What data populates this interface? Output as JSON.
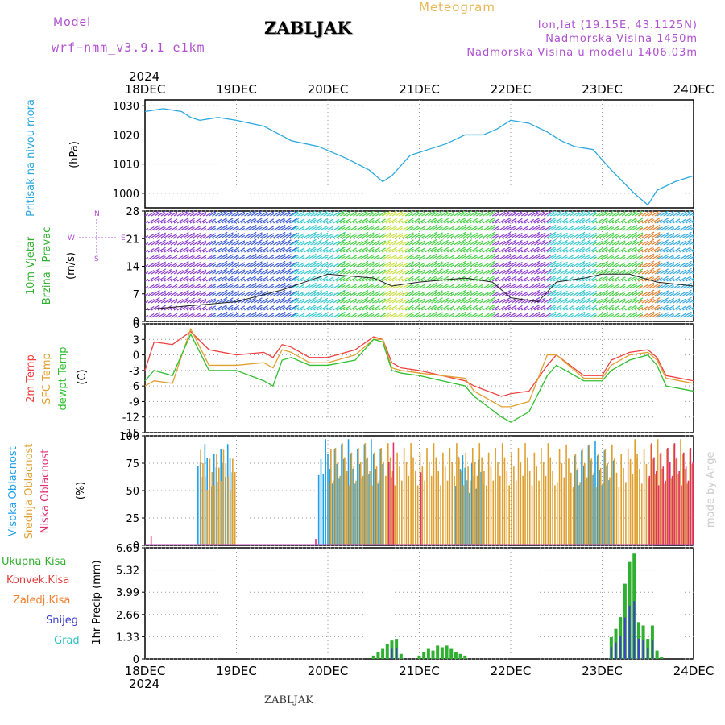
{
  "header": {
    "model_label": "Model",
    "model_name": "wrf−nmm_v3.9.1  e1km",
    "title": "ZABLJAK",
    "subtitle": "Meteogram",
    "coords": "lon,lat (19.15E, 43.1125N)",
    "elevation": "Nadmorska Visina 1450m",
    "model_elevation": "Nadmorska Visina u modelu 1406.03m"
  },
  "footer": {
    "station": "ZABLJAK",
    "credit": "made by Angel"
  },
  "time_axis": {
    "year": "2024",
    "labels": [
      "18DEC",
      "19DEC",
      "20DEC",
      "21DEC",
      "22DEC",
      "23DEC",
      "24DEC"
    ]
  },
  "colors": {
    "pressure": "#2aa8e0",
    "temp2m": "#f04040",
    "sfc": "#e0a030",
    "dewpt": "#30c030",
    "high_cloud": "#1ea0e8",
    "mid_cloud": "#e0a030",
    "low_cloud": "#e03070",
    "total_rain": "#30b030",
    "conv_rain": "#e04040",
    "strat_rain": "#f08030",
    "snow": "#4040d0",
    "hail": "#30c0c0"
  },
  "panels": {
    "pressure": {
      "ylabel_a": "Pritisak na nivou mora",
      "ylabel_b": "(hPa)"
    },
    "wind": {
      "ylabel_a": "10m Vjetar",
      "ylabel_b": "Brzina i Pravac",
      "unit": "(m/s)",
      "compass": "N",
      "compass_w": "W",
      "compass_s": "S",
      "compass_e": "E"
    },
    "temp": {
      "ylabel_a": "2m Temp",
      "ylabel_b": "SFC Temp",
      "ylabel_c": "dewpt Temp",
      "unit": "(C)"
    },
    "cloud": {
      "ylabel_a": "Visoka Oblacnost",
      "ylabel_b": "Srednja Oblacnost",
      "ylabel_c": "Niska Oblacnost",
      "unit": "(%)"
    },
    "precip": {
      "legend": [
        "Ukupna Kisa",
        "Konvek.Kisa",
        "Zaledj.Kisa",
        "Snijeg",
        "Grad"
      ],
      "ylabel": "1hr Precip (mm)"
    }
  },
  "chart_data": [
    {
      "type": "line",
      "title": "",
      "ylabel": "(hPa)",
      "ylim": [
        995,
        1032
      ],
      "yticks": [
        1000,
        1010,
        1020,
        1030
      ],
      "x_unit": "day offset from 18DEC 00UTC",
      "series": [
        {
          "name": "Pritisak na nivou mora",
          "x": [
            0,
            0.2,
            0.4,
            0.5,
            0.6,
            0.8,
            1.0,
            1.3,
            1.6,
            1.9,
            2.2,
            2.45,
            2.6,
            2.7,
            2.9,
            3.1,
            3.3,
            3.5,
            3.7,
            3.85,
            4.0,
            4.2,
            4.4,
            4.55,
            4.7,
            4.9,
            5.1,
            5.35,
            5.5,
            5.6,
            5.8,
            6.0
          ],
          "y": [
            1028,
            1029,
            1028,
            1026,
            1025,
            1026,
            1025,
            1023,
            1018,
            1016,
            1012,
            1008,
            1004,
            1006,
            1013,
            1015,
            1017,
            1020,
            1020,
            1022,
            1025,
            1024,
            1021,
            1018,
            1016,
            1015,
            1008,
            1000,
            996,
            1001,
            1004,
            1006
          ]
        }
      ]
    },
    {
      "type": "line",
      "ylabel": "(m/s)",
      "ylim": [
        0,
        28
      ],
      "yticks": [
        0,
        7,
        14,
        21,
        28
      ],
      "series": [
        {
          "name": "10m Vjetar",
          "x": [
            0,
            0.5,
            1,
            1.5,
            2,
            2.5,
            2.7,
            3,
            3.5,
            3.8,
            4,
            4.3,
            4.5,
            4.8,
            5,
            5.3,
            5.6,
            6
          ],
          "y": [
            3,
            4,
            5,
            8,
            12,
            11,
            9,
            10,
            11,
            10,
            6,
            5,
            10,
            11,
            12,
            12,
            10,
            9
          ]
        }
      ]
    },
    {
      "type": "line",
      "ylabel": "(C)",
      "ylim": [
        -15,
        6
      ],
      "yticks": [
        -15,
        -12,
        -9,
        -6,
        -3,
        0,
        3,
        6
      ],
      "series": [
        {
          "name": "2m Temp",
          "x": [
            0,
            0.1,
            0.3,
            0.5,
            0.7,
            1,
            1.3,
            1.4,
            1.5,
            1.6,
            1.8,
            2,
            2.3,
            2.5,
            2.6,
            2.7,
            2.8,
            3,
            3.5,
            3.6,
            3.9,
            4,
            4.2,
            4.4,
            4.5,
            4.8,
            5,
            5.1,
            5.3,
            5.5,
            5.6,
            5.7,
            6
          ],
          "y": [
            -3,
            2.5,
            2,
            4.5,
            1,
            0,
            0.5,
            -0.5,
            2,
            1.5,
            -0.5,
            -0.5,
            1,
            3.5,
            3,
            -1.5,
            -2.5,
            -3,
            -5,
            -6,
            -8,
            -7.5,
            -7,
            -2,
            0,
            -4,
            -4,
            -1,
            0.5,
            1,
            -0.5,
            -4,
            -5
          ]
        },
        {
          "name": "SFC Temp",
          "x": [
            0,
            0.1,
            0.3,
            0.5,
            0.7,
            1,
            1.3,
            1.4,
            1.5,
            1.6,
            1.8,
            2,
            2.3,
            2.5,
            2.6,
            2.7,
            2.8,
            3,
            3.5,
            3.6,
            3.9,
            4,
            4.2,
            4.4,
            4.5,
            4.8,
            5,
            5.1,
            5.3,
            5.5,
            5.6,
            5.7,
            6
          ],
          "y": [
            -6,
            -5,
            -5.5,
            5,
            -2,
            -2,
            -1.5,
            -2.5,
            1,
            0.5,
            -1.5,
            -1.5,
            0,
            3,
            3,
            -2.5,
            -3,
            -3.5,
            -4.5,
            -7,
            -10,
            -10,
            -9,
            0,
            0,
            -4.5,
            -4.5,
            -2,
            0,
            0.5,
            -1,
            -4.5,
            -5.5
          ]
        },
        {
          "name": "dewpt Temp",
          "x": [
            0,
            0.1,
            0.3,
            0.5,
            0.7,
            1,
            1.3,
            1.4,
            1.5,
            1.6,
            1.8,
            2,
            2.3,
            2.5,
            2.6,
            2.7,
            2.8,
            3,
            3.5,
            3.6,
            3.9,
            4,
            4.2,
            4.4,
            4.5,
            4.8,
            5,
            5.1,
            5.3,
            5.5,
            5.6,
            5.7,
            6
          ],
          "y": [
            -5,
            -3,
            -4,
            4,
            -3,
            -3,
            -5,
            -6,
            -1,
            -0.5,
            -2,
            -2,
            -1,
            3,
            2.5,
            -3,
            -3.5,
            -4,
            -6,
            -8,
            -12,
            -13,
            -11,
            -4,
            -2,
            -5,
            -5,
            -3,
            -1,
            0,
            -2,
            -6,
            -7
          ]
        }
      ]
    },
    {
      "type": "bar",
      "ylabel": "(%)",
      "ylim": [
        0,
        100
      ],
      "yticks": [
        0,
        25,
        50,
        75,
        100
      ],
      "series": [
        {
          "name": "Visoka Oblacnost",
          "intervals": [
            [
              0.58,
              1.0,
              95
            ],
            [
              1.9,
              2.6,
              100
            ],
            [
              3.4,
              3.7,
              85
            ],
            [
              4.7,
              5.15,
              100
            ]
          ]
        },
        {
          "name": "Srednja Oblacnost",
          "intervals": [
            [
              0.6,
              1.0,
              90
            ],
            [
              2.0,
              5.4,
              95
            ],
            [
              5.3,
              6.0,
              100
            ]
          ]
        },
        {
          "name": "Niska Oblacnost",
          "intervals": [
            [
              0.05,
              0.07,
              10
            ],
            [
              1.85,
              1.87,
              10
            ],
            [
              2.65,
              2.7,
              100
            ],
            [
              3.0,
              3.02,
              100
            ],
            [
              5.5,
              6.0,
              95
            ]
          ]
        }
      ]
    },
    {
      "type": "bar",
      "ylabel": "1hr Precip (mm)",
      "ylim": [
        0,
        6.65
      ],
      "yticks": [
        0,
        1.33,
        2.66,
        3.99,
        5.32,
        6.65
      ],
      "series": [
        {
          "name": "Ukupna Kisa",
          "x": [
            2.5,
            2.55,
            2.6,
            2.65,
            2.7,
            2.75,
            2.8,
            3.0,
            3.05,
            3.1,
            3.15,
            3.2,
            3.25,
            3.3,
            3.35,
            3.4,
            3.45,
            3.5,
            5.1,
            5.15,
            5.2,
            5.25,
            5.3,
            5.35,
            5.4,
            5.45,
            5.5,
            5.55,
            5.6,
            5.65
          ],
          "y": [
            0.2,
            0.4,
            0.6,
            0.9,
            1.1,
            1.2,
            0.3,
            0.2,
            0.4,
            0.6,
            0.5,
            0.8,
            0.7,
            0.8,
            0.6,
            0.4,
            0.3,
            0.2,
            1.3,
            1.8,
            2.5,
            4.5,
            5.8,
            6.3,
            2.2,
            2.0,
            1.2,
            2.0,
            0.5,
            0.1
          ]
        }
      ]
    }
  ]
}
